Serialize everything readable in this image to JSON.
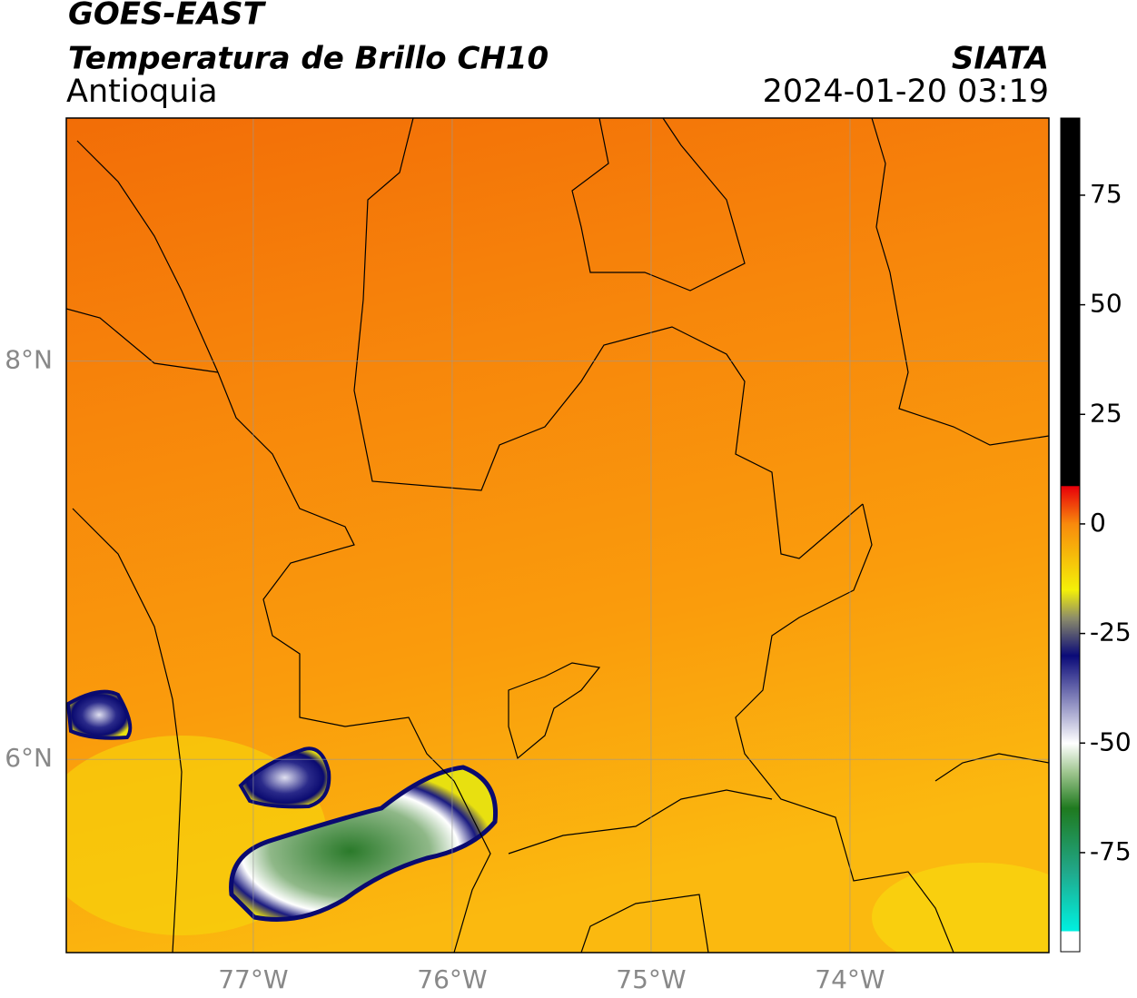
{
  "header": {
    "title": "GOES-EAST",
    "subtitle": "Temperatura de Brillo CH10",
    "region": "Antioquia",
    "source": "SIATA",
    "datetime": "2024-01-20 03:19"
  },
  "map": {
    "xlim": [
      -77.94,
      -73.0
    ],
    "ylim": [
      5.03,
      9.22
    ],
    "xticks": [
      {
        "value": -77,
        "label": "77°W"
      },
      {
        "value": -76,
        "label": "76°W"
      },
      {
        "value": -75,
        "label": "75°W"
      },
      {
        "value": -74,
        "label": "74°W"
      }
    ],
    "yticks": [
      {
        "value": 6,
        "label": "6°N"
      },
      {
        "value": 8,
        "label": "8°N"
      }
    ],
    "grid": true
  },
  "colorbar": {
    "lim": [
      -97.6,
      92.6
    ],
    "ticks": [
      -75,
      -50,
      -25,
      0,
      25,
      50,
      75
    ]
  }
}
